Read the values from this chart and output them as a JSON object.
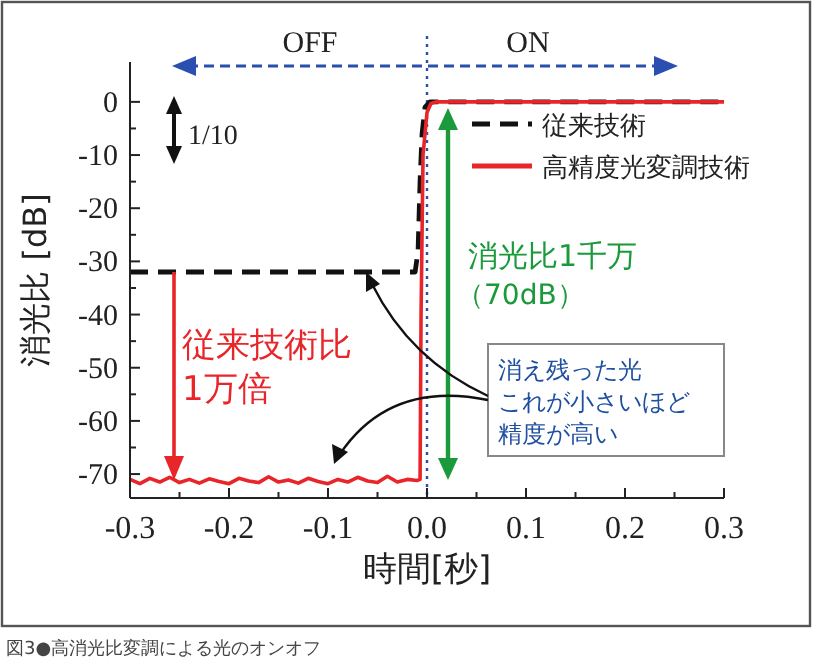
{
  "chart_data": {
    "type": "line",
    "xlabel": "時間[秒]",
    "ylabel": "消光比 [dB]",
    "xlim": [
      -0.3,
      0.3
    ],
    "ylim": [
      -74.5,
      7.5
    ],
    "xticks": [
      -0.3,
      {
        "value": -0.25,
        "label": null
      },
      -0.2,
      {
        "value": -0.15,
        "label": null
      },
      -0.1,
      {
        "value": -0.05,
        "label": null
      },
      {
        "value": 0,
        "label": "0.0"
      },
      {
        "value": 0.05,
        "label": null
      },
      0.1,
      {
        "value": 0.15,
        "label": null
      },
      0.2,
      {
        "value": 0.25,
        "label": null
      },
      0.3
    ],
    "yticks": [
      0,
      {
        "value": -5,
        "label": null
      },
      -10,
      {
        "value": -15,
        "label": null
      },
      -20,
      {
        "value": -25,
        "label": null
      },
      -30,
      {
        "value": -35,
        "label": null
      },
      -40,
      {
        "value": -45,
        "label": null
      },
      -50,
      {
        "value": -55,
        "label": null
      },
      -60,
      {
        "value": -65,
        "label": null
      },
      -70
    ],
    "legend": "top right",
    "series": [
      {
        "name": "従来技術",
        "color": "#111111",
        "line_style": "dashed",
        "x": [
          -0.3,
          -0.012,
          -0.009,
          -0.007,
          -0.005,
          -0.002,
          0.003,
          0.3
        ],
        "values": [
          -32,
          -32,
          -28,
          -15,
          -6,
          -1,
          0,
          0
        ]
      },
      {
        "name": "高精度光変調技術",
        "color": "#e8262a",
        "line_style": "solid",
        "x": [
          -0.3,
          -0.29,
          -0.28,
          -0.27,
          -0.26,
          -0.25,
          -0.24,
          -0.23,
          -0.22,
          -0.21,
          -0.2,
          -0.19,
          -0.18,
          -0.17,
          -0.16,
          -0.15,
          -0.14,
          -0.13,
          -0.12,
          -0.11,
          -0.1,
          -0.09,
          -0.08,
          -0.07,
          -0.06,
          -0.05,
          -0.04,
          -0.03,
          -0.02,
          -0.01,
          -0.007,
          -0.006,
          -0.004,
          0,
          0.004,
          0.009,
          0.3
        ],
        "values": [
          -71,
          -71.8,
          -70.8,
          -71.5,
          -70.6,
          -71.6,
          -71,
          -71.7,
          -70.9,
          -71.4,
          -71.8,
          -70.8,
          -71.3,
          -71.6,
          -70.5,
          -71.5,
          -71.1,
          -71.7,
          -70.8,
          -71.4,
          -71.8,
          -71,
          -71.5,
          -70.6,
          -71.3,
          -71.6,
          -70.4,
          -71.5,
          -71,
          -71.2,
          -71,
          -40,
          -10,
          -2,
          -0.3,
          0,
          0
        ]
      }
    ],
    "ref_lines": [
      {
        "axis": "x",
        "value": 0,
        "color": "#2a4fb0",
        "line_style": "dotted"
      }
    ],
    "annotations": [
      "OFF",
      "ON",
      "1/10",
      "消光比1千万",
      "（70dB）",
      "従来技術比",
      "1万倍",
      "消え残った光",
      "これが小さいほど",
      "精度が高い",
      "図3●高消光比変調による光のオンオフ"
    ]
  }
}
